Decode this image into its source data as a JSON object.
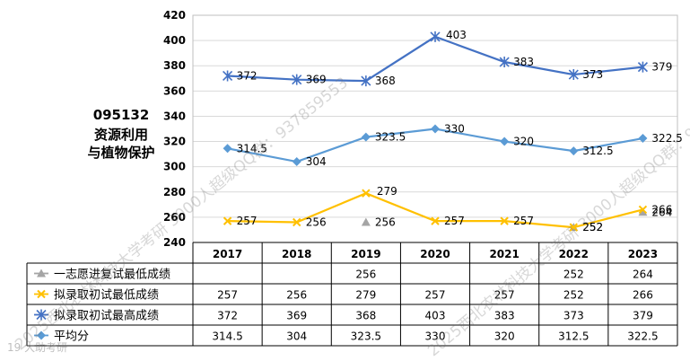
{
  "title_lines": [
    "095132",
    "资源利用",
    "与植物保护"
  ],
  "watermarks": [
    "2025西北农林科技大学考研 3000人超级QQ群：937859553",
    "2025西北农林科技大学考研 3000人超级QQ群：937859553"
  ],
  "corner_mark": "19 大助考研",
  "chart_data": {
    "type": "line",
    "categories": [
      "2017",
      "2018",
      "2019",
      "2020",
      "2021",
      "2022",
      "2023"
    ],
    "ylim": [
      240,
      420
    ],
    "yticks": [
      240,
      260,
      280,
      300,
      320,
      340,
      360,
      380,
      400,
      420
    ],
    "grid": true,
    "series": [
      {
        "name": "一志愿进复试最低成绩",
        "color": "#A5A5A5",
        "marker": "triangle",
        "values": [
          null,
          null,
          256,
          null,
          null,
          252,
          264
        ],
        "labels": [
          "",
          "",
          "256",
          "",
          "",
          "252",
          "264"
        ]
      },
      {
        "name": "拟录取初试最低成绩",
        "color": "#FFC000",
        "marker": "x",
        "values": [
          257,
          256,
          279,
          257,
          257,
          252,
          266
        ],
        "labels": [
          "257",
          "256",
          "279",
          "257",
          "257",
          "252",
          "266"
        ]
      },
      {
        "name": "拟录取初试最高成绩",
        "color": "#4472C4",
        "marker": "star",
        "values": [
          372,
          369,
          368,
          403,
          383,
          373,
          379
        ],
        "labels": [
          "372",
          "369",
          "368",
          "403",
          "383",
          "373",
          "379"
        ]
      },
      {
        "name": "平均分",
        "color": "#5B9BD5",
        "marker": "diamond",
        "values": [
          314.5,
          304,
          323.5,
          330,
          320,
          312.5,
          322.5
        ],
        "labels": [
          "314.5",
          "304",
          "323.5",
          "330",
          "320",
          "312.5",
          "322.5"
        ]
      }
    ]
  }
}
